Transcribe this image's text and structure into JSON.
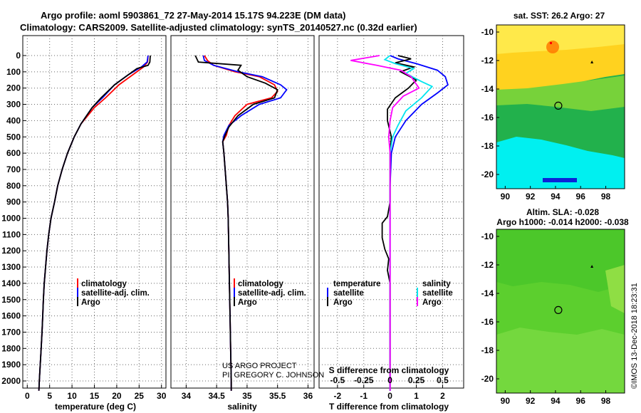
{
  "title": {
    "line1": "Argo profile: aoml 5903861_72 27-May-2014 15.17S 94.223E (DM data)",
    "line2": "Climatology: CARS2009. Satellite-adjusted climatology: synTS_20140527.nc (0.32d earlier)"
  },
  "colors": {
    "climatology": "#ff0000",
    "satellite": "#0000ff",
    "argo": "#000000",
    "sat_salinity": "#00e5ee",
    "argo_salinity": "#ff00ff"
  },
  "watermark": "©IMOS 13-Dec-2018 18:23:31",
  "credit": {
    "line1": "US ARGO PROJECT",
    "line2": "PI: GREGORY C. JOHNSON"
  },
  "chart_data": [
    {
      "type": "line",
      "title": "",
      "xlabel": "temperature (deg C)",
      "ylabel": "",
      "xlim": [
        -1,
        31
      ],
      "ylim": [
        2080,
        0
      ],
      "xticks": [
        0,
        5,
        10,
        15,
        20,
        25,
        30
      ],
      "yticks": [
        0,
        100,
        200,
        300,
        400,
        500,
        600,
        700,
        800,
        900,
        1000,
        1100,
        1200,
        1300,
        1400,
        1500,
        1600,
        1700,
        1800,
        1900,
        2000
      ],
      "legend": [
        "climatology",
        "satellite-adj. clim.",
        "Argo"
      ],
      "series": [
        {
          "name": "climatology",
          "color": "#ff0000",
          "points": [
            [
              27.0,
              0
            ],
            [
              26.9,
              40
            ],
            [
              26.0,
              70
            ],
            [
              23.5,
              120
            ],
            [
              20.5,
              180
            ],
            [
              17.5,
              260
            ],
            [
              15,
              320
            ],
            [
              12,
              420
            ],
            [
              10.5,
              500
            ],
            [
              9,
              600
            ],
            [
              7.8,
              700
            ],
            [
              6.8,
              800
            ],
            [
              6.1,
              900
            ],
            [
              5.3,
              1000
            ],
            [
              4.8,
              1100
            ],
            [
              4.4,
              1200
            ],
            [
              4.1,
              1300
            ],
            [
              3.8,
              1400
            ],
            [
              3.6,
              1500
            ],
            [
              3.45,
              1600
            ],
            [
              3.3,
              1700
            ],
            [
              3.1,
              1800
            ],
            [
              2.9,
              1900
            ],
            [
              2.7,
              2000
            ],
            [
              2.6,
              2060
            ]
          ]
        },
        {
          "name": "satellite-adj. clim.",
          "color": "#0000ff",
          "points": [
            [
              27.0,
              0
            ],
            [
              26.8,
              40
            ],
            [
              25.5,
              70
            ],
            [
              22.5,
              120
            ],
            [
              19.5,
              180
            ],
            [
              16.8,
              260
            ],
            [
              14.5,
              320
            ],
            [
              12,
              420
            ],
            [
              10.5,
              500
            ],
            [
              9,
              600
            ],
            [
              7.8,
              700
            ],
            [
              6.8,
              800
            ],
            [
              6.1,
              900
            ],
            [
              5.3,
              1000
            ],
            [
              4.8,
              1100
            ],
            [
              4.4,
              1200
            ],
            [
              4.1,
              1300
            ],
            [
              3.8,
              1400
            ],
            [
              3.6,
              1500
            ],
            [
              3.45,
              1600
            ],
            [
              3.3,
              1700
            ],
            [
              3.1,
              1800
            ],
            [
              2.9,
              1900
            ],
            [
              2.7,
              2000
            ],
            [
              2.6,
              2060
            ]
          ]
        },
        {
          "name": "Argo",
          "color": "#000000",
          "points": [
            [
              27.5,
              0
            ],
            [
              27.4,
              40
            ],
            [
              27.0,
              60
            ],
            [
              24.5,
              80
            ],
            [
              22.5,
              120
            ],
            [
              19.5,
              180
            ],
            [
              16.5,
              260
            ],
            [
              14.5,
              320
            ],
            [
              12,
              420
            ],
            [
              10.5,
              500
            ],
            [
              9,
              600
            ],
            [
              7.8,
              700
            ],
            [
              6.8,
              800
            ],
            [
              6.1,
              900
            ],
            [
              5.3,
              1000
            ],
            [
              4.8,
              1100
            ],
            [
              4.4,
              1200
            ],
            [
              4.1,
              1300
            ],
            [
              3.8,
              1400
            ],
            [
              3.6,
              1500
            ],
            [
              3.45,
              1600
            ],
            [
              3.3,
              1700
            ],
            [
              3.1,
              1800
            ],
            [
              2.9,
              1900
            ],
            [
              2.7,
              2000
            ],
            [
              2.6,
              2060
            ]
          ]
        }
      ]
    },
    {
      "type": "line",
      "title": "",
      "xlabel": "salinity",
      "ylabel": "",
      "xlim": [
        33.75,
        36.1
      ],
      "ylim": [
        2080,
        0
      ],
      "xticks": [
        34,
        34.5,
        35,
        35.5,
        36
      ],
      "legend": [
        "climatology",
        "satellite-adj. clim.",
        "Argo"
      ],
      "series": [
        {
          "name": "climatology",
          "color": "#ff0000",
          "points": [
            [
              34.3,
              0
            ],
            [
              34.35,
              30
            ],
            [
              34.45,
              60
            ],
            [
              34.8,
              100
            ],
            [
              35.2,
              130
            ],
            [
              35.45,
              180
            ],
            [
              35.5,
              220
            ],
            [
              35.4,
              260
            ],
            [
              35.0,
              300
            ],
            [
              34.8,
              370
            ],
            [
              34.7,
              430
            ],
            [
              34.66,
              490
            ],
            [
              34.6,
              530
            ],
            [
              34.62,
              600
            ],
            [
              34.64,
              700
            ],
            [
              34.66,
              800
            ],
            [
              34.68,
              900
            ],
            [
              34.69,
              1000
            ],
            [
              34.7,
              1200
            ],
            [
              34.71,
              1400
            ],
            [
              34.72,
              1600
            ],
            [
              34.73,
              1800
            ],
            [
              34.74,
              2000
            ],
            [
              34.74,
              2060
            ]
          ]
        },
        {
          "name": "satellite-adj. clim.",
          "color": "#0000ff",
          "points": [
            [
              34.28,
              0
            ],
            [
              34.3,
              30
            ],
            [
              34.45,
              60
            ],
            [
              34.85,
              100
            ],
            [
              35.25,
              130
            ],
            [
              35.55,
              180
            ],
            [
              35.65,
              210
            ],
            [
              35.55,
              260
            ],
            [
              35.2,
              300
            ],
            [
              34.9,
              370
            ],
            [
              34.7,
              430
            ],
            [
              34.62,
              490
            ],
            [
              34.6,
              530
            ],
            [
              34.62,
              600
            ],
            [
              34.64,
              700
            ],
            [
              34.66,
              800
            ],
            [
              34.68,
              900
            ],
            [
              34.69,
              1000
            ],
            [
              34.7,
              1200
            ],
            [
              34.71,
              1400
            ],
            [
              34.72,
              1600
            ],
            [
              34.73,
              1800
            ],
            [
              34.74,
              2000
            ],
            [
              34.74,
              2060
            ]
          ]
        },
        {
          "name": "Argo",
          "color": "#000000",
          "points": [
            [
              34.15,
              0
            ],
            [
              34.2,
              40
            ],
            [
              34.9,
              60
            ],
            [
              34.85,
              90
            ],
            [
              35.0,
              130
            ],
            [
              35.3,
              170
            ],
            [
              35.5,
              210
            ],
            [
              35.45,
              260
            ],
            [
              35.1,
              300
            ],
            [
              34.85,
              370
            ],
            [
              34.7,
              440
            ],
            [
              34.64,
              490
            ],
            [
              34.6,
              530
            ],
            [
              34.62,
              600
            ],
            [
              34.64,
              700
            ],
            [
              34.66,
              800
            ],
            [
              34.68,
              900
            ],
            [
              34.69,
              1000
            ],
            [
              34.7,
              1200
            ],
            [
              34.71,
              1400
            ],
            [
              34.72,
              1600
            ],
            [
              34.73,
              1800
            ],
            [
              34.74,
              2000
            ],
            [
              34.74,
              2060
            ]
          ]
        }
      ]
    },
    {
      "type": "line",
      "title": "S difference from climatology",
      "xlabel": "T difference from climatology",
      "ylabel": "",
      "xlim": [
        -2.7,
        2.8
      ],
      "ylim": [
        2080,
        0
      ],
      "xticks": [
        -2,
        -1,
        0,
        1,
        2
      ],
      "top_ticks": [
        "-0.5",
        "-0.25",
        "0",
        "0.25",
        "0.5"
      ],
      "top_tick_positions": [
        -2,
        -1,
        0,
        1,
        2
      ],
      "legend": [
        "temperature",
        "satellite",
        "Argo",
        "salinity",
        "satellite",
        "Argo"
      ],
      "series": [
        {
          "name": "temperature satellite",
          "color": "#0000ff",
          "points": [
            [
              0,
              0
            ],
            [
              0.3,
              20
            ],
            [
              1.0,
              50
            ],
            [
              1.8,
              90
            ],
            [
              2.1,
              130
            ],
            [
              2.2,
              180
            ],
            [
              1.8,
              230
            ],
            [
              1.2,
              300
            ],
            [
              0.6,
              400
            ],
            [
              0.2,
              500
            ],
            [
              0.05,
              600
            ],
            [
              0,
              800
            ],
            [
              0,
              2060
            ]
          ]
        },
        {
          "name": "temperature Argo",
          "color": "#000000",
          "points": [
            [
              0.3,
              0
            ],
            [
              0.8,
              20
            ],
            [
              0.2,
              45
            ],
            [
              0.9,
              70
            ],
            [
              0.4,
              100
            ],
            [
              1.0,
              150
            ],
            [
              0.7,
              200
            ],
            [
              0.2,
              260
            ],
            [
              -0.1,
              330
            ],
            [
              -0.1,
              400
            ],
            [
              0.05,
              500
            ],
            [
              0,
              600
            ],
            [
              0,
              900
            ],
            [
              -0.1,
              990
            ],
            [
              -0.3,
              1030
            ],
            [
              -0.3,
              1120
            ],
            [
              -0.2,
              1190
            ],
            [
              -0.05,
              1250
            ],
            [
              -0.1,
              1320
            ],
            [
              0,
              1400
            ],
            [
              0,
              2060
            ]
          ]
        },
        {
          "name": "salinity satellite",
          "color": "#00e5ee",
          "points": [
            [
              0,
              0
            ],
            [
              -0.2,
              25
            ],
            [
              0.2,
              50
            ],
            [
              0.9,
              80
            ],
            [
              0.6,
              110
            ],
            [
              1.2,
              160
            ],
            [
              1.6,
              190
            ],
            [
              1.2,
              260
            ],
            [
              0.6,
              340
            ],
            [
              0.3,
              430
            ],
            [
              0.1,
              500
            ],
            [
              0,
              600
            ],
            [
              0,
              2060
            ]
          ]
        },
        {
          "name": "salinity Argo",
          "color": "#ff00ff",
          "points": [
            [
              -0.4,
              0
            ],
            [
              -1.5,
              30
            ],
            [
              -0.5,
              60
            ],
            [
              0.4,
              90
            ],
            [
              0.8,
              130
            ],
            [
              1.1,
              200
            ],
            [
              0.5,
              250
            ],
            [
              0.1,
              320
            ],
            [
              0,
              400
            ],
            [
              -0.05,
              500
            ],
            [
              0,
              600
            ],
            [
              0,
              2060
            ]
          ]
        }
      ]
    },
    {
      "type": "heatmap",
      "title": "sat. SST: 26.2 Argo: 27",
      "xlabel": "",
      "ylabel": "",
      "xlim": [
        89.3,
        99.5
      ],
      "ylim": [
        -21,
        -9.5
      ],
      "xticks": [
        90,
        92,
        94,
        96,
        98
      ],
      "yticks": [
        -10,
        -12,
        -14,
        -16,
        -18,
        -20
      ],
      "marker": {
        "lon": 94.223,
        "lat": -15.17
      },
      "prev_position": {
        "lon": 96.9,
        "lat": -12.1
      }
    },
    {
      "type": "heatmap",
      "title": "Altim. SLA: -0.028",
      "subtitle": "Argo h1000: -0.014 h2000: -0.038",
      "xlabel": "",
      "ylabel": "",
      "xlim": [
        89.3,
        99.5
      ],
      "ylim": [
        -21,
        -9.5
      ],
      "xticks": [
        90,
        92,
        94,
        96,
        98
      ],
      "yticks": [
        -10,
        -12,
        -14,
        -16,
        -18,
        -20
      ],
      "marker": {
        "lon": 94.223,
        "lat": -15.17
      },
      "prev_position": {
        "lon": 96.9,
        "lat": -12.1
      }
    }
  ]
}
